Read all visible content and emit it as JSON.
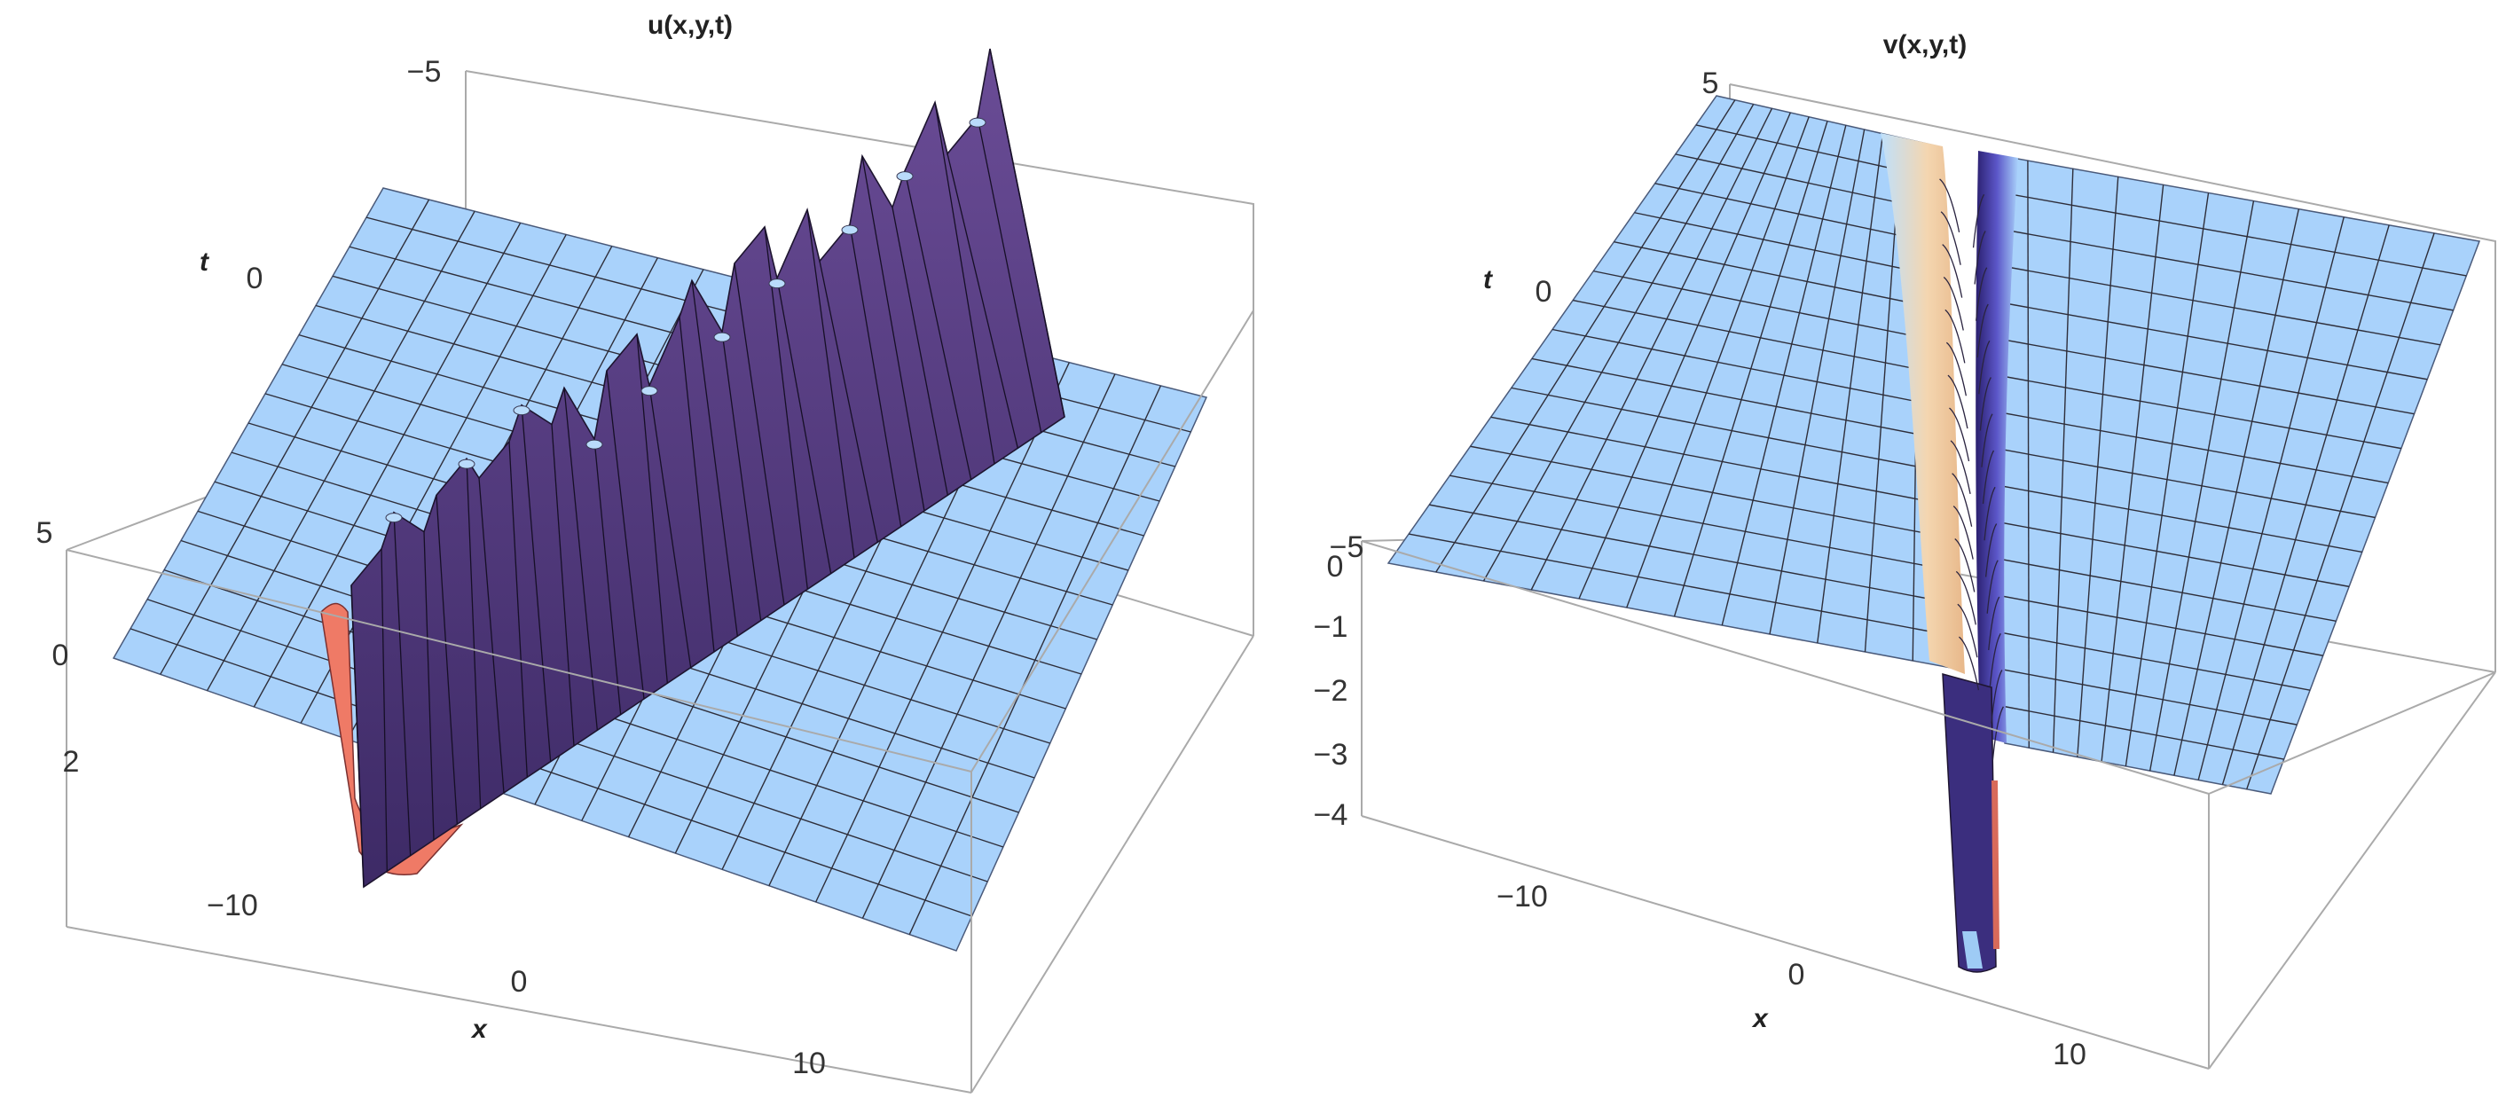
{
  "chart_data": [
    {
      "type": "surface3d",
      "title": "u(x,y,t)",
      "xlabel": "x",
      "ylabel": "t",
      "x_ticks": [
        "−10",
        "0",
        "10"
      ],
      "t_ticks": [
        "−5",
        "0",
        "5"
      ],
      "z_ticks": [
        "0",
        "2"
      ],
      "xlim": [
        -15,
        15
      ],
      "tlim": [
        -5,
        5
      ],
      "zlim": [
        -1,
        4
      ],
      "surface": "flat plane with a jagged kink wall running diagonally across the x–t domain",
      "colors": {
        "surface": "#a9d2fb",
        "wall": "#5a3e86",
        "underside": "#ef7a66"
      }
    },
    {
      "type": "surface3d",
      "title": "v(x,y,t)",
      "xlabel": "x",
      "ylabel": "t",
      "x_ticks": [
        "−10",
        "0",
        "10"
      ],
      "t_ticks": [
        "5",
        "0",
        "−5"
      ],
      "z_ticks": [
        "0",
        "−1",
        "−2",
        "−3",
        "−4"
      ],
      "xlim": [
        -15,
        15
      ],
      "tlim": [
        -5,
        5
      ],
      "zlim": [
        -4,
        0
      ],
      "surface": "flat plane with a narrow deep trough running along t",
      "colors": {
        "surface": "#a9d2fb",
        "trough_left": "#f3c89a",
        "trough_right": "#3c2c8a"
      }
    }
  ]
}
